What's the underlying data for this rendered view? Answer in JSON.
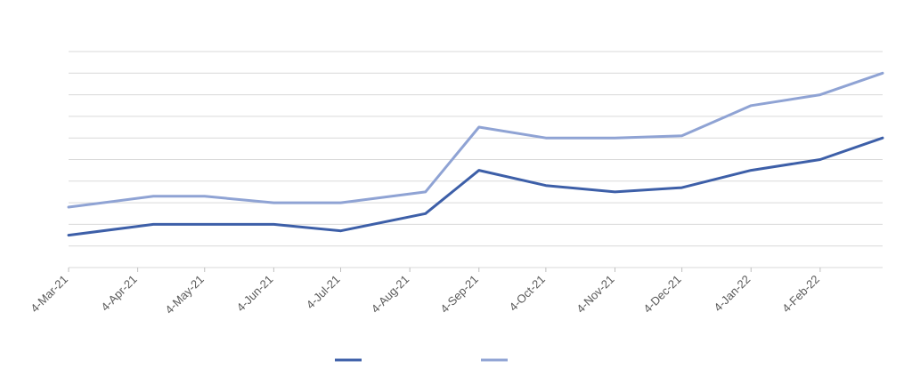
{
  "chart_data": {
    "type": "line",
    "title": "",
    "xlabel": "",
    "ylabel": "",
    "x_tick_labels": [
      "4-Mar-21",
      "4-Apr-21",
      "4-May-21",
      "4-Jun-21",
      "4-Jul-21",
      "4-Aug-21",
      "4-Sep-21",
      "4-Oct-21",
      "4-Nov-21",
      "4-Dec-21",
      "4-Jan-22",
      "4-Feb-22"
    ],
    "xlim": [
      "2021-03-04",
      "2022-03-04"
    ],
    "ylim": [
      0,
      10
    ],
    "y_gridlines": 10,
    "grid": true,
    "legend_position": "bottom",
    "series": [
      {
        "color": "#3d5fa8",
        "points": [
          {
            "x": "2021-03-04",
            "y": 1.5
          },
          {
            "x": "2021-04-11",
            "y": 2.0
          },
          {
            "x": "2021-05-04",
            "y": 2.0
          },
          {
            "x": "2021-06-04",
            "y": 2.0
          },
          {
            "x": "2021-07-04",
            "y": 1.7
          },
          {
            "x": "2021-08-11",
            "y": 2.5
          },
          {
            "x": "2021-09-04",
            "y": 4.5
          },
          {
            "x": "2021-10-04",
            "y": 3.8
          },
          {
            "x": "2021-11-04",
            "y": 3.5
          },
          {
            "x": "2021-12-04",
            "y": 3.7
          },
          {
            "x": "2022-01-04",
            "y": 4.5
          },
          {
            "x": "2022-02-04",
            "y": 5.0
          },
          {
            "x": "2022-03-04",
            "y": 6.0
          }
        ]
      },
      {
        "color": "#8fa3d4",
        "points": [
          {
            "x": "2021-03-04",
            "y": 2.8
          },
          {
            "x": "2021-04-11",
            "y": 3.3
          },
          {
            "x": "2021-05-04",
            "y": 3.3
          },
          {
            "x": "2021-06-04",
            "y": 3.0
          },
          {
            "x": "2021-07-04",
            "y": 3.0
          },
          {
            "x": "2021-08-11",
            "y": 3.5
          },
          {
            "x": "2021-09-04",
            "y": 6.5
          },
          {
            "x": "2021-10-04",
            "y": 6.0
          },
          {
            "x": "2021-11-04",
            "y": 6.0
          },
          {
            "x": "2021-12-04",
            "y": 6.1
          },
          {
            "x": "2022-01-04",
            "y": 7.5
          },
          {
            "x": "2022-02-04",
            "y": 8.0
          },
          {
            "x": "2022-03-04",
            "y": 9.0
          }
        ]
      }
    ]
  }
}
